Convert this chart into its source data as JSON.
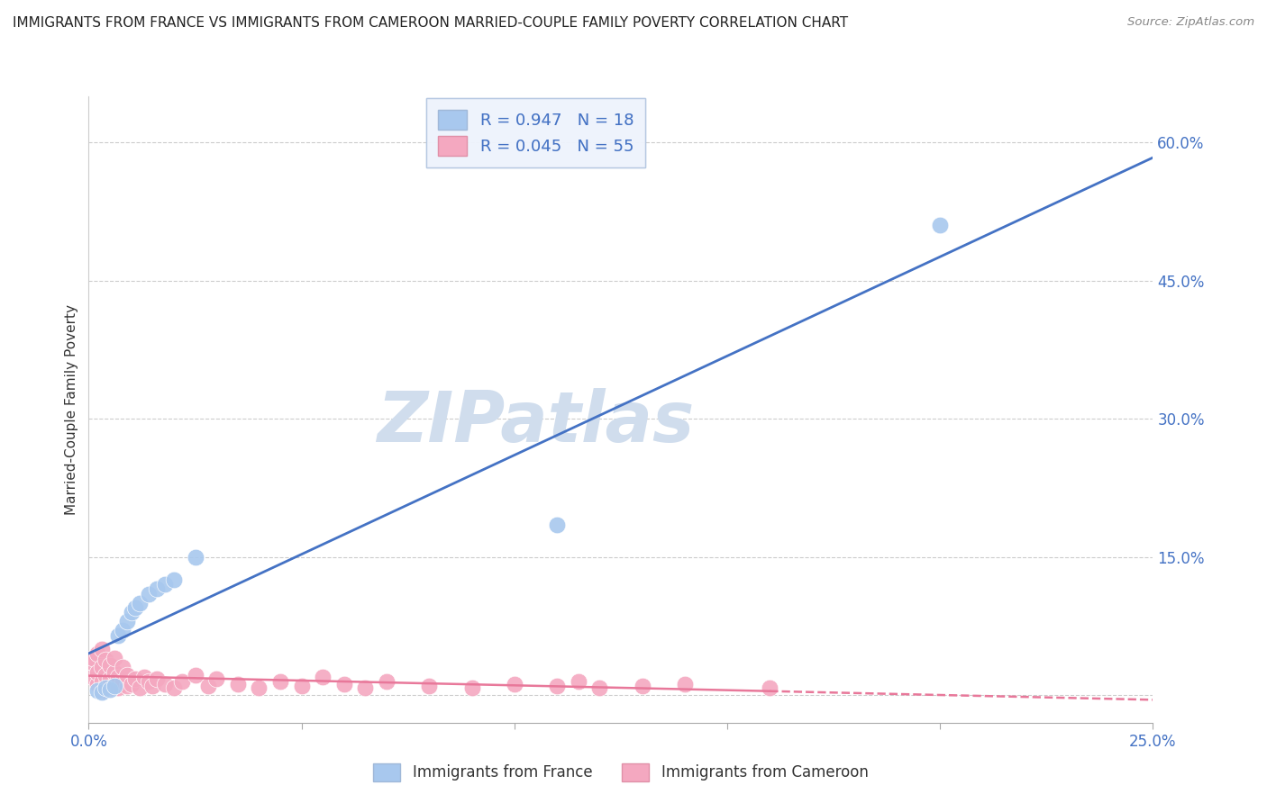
{
  "title": "IMMIGRANTS FROM FRANCE VS IMMIGRANTS FROM CAMEROON MARRIED-COUPLE FAMILY POVERTY CORRELATION CHART",
  "source": "Source: ZipAtlas.com",
  "ylabel": "Married-Couple Family Poverty",
  "xlim": [
    0.0,
    0.25
  ],
  "ylim": [
    -0.03,
    0.65
  ],
  "xticks": [
    0.0,
    0.05,
    0.1,
    0.15,
    0.2,
    0.25
  ],
  "yticks": [
    0.0,
    0.15,
    0.3,
    0.45,
    0.6
  ],
  "ytick_labels": [
    "",
    "15.0%",
    "30.0%",
    "45.0%",
    "60.0%"
  ],
  "xtick_labels": [
    "0.0%",
    "",
    "",
    "",
    "",
    "25.0%"
  ],
  "france_R": 0.947,
  "france_N": 18,
  "cameroon_R": 0.045,
  "cameroon_N": 55,
  "france_color": "#A8C8EE",
  "cameroon_color": "#F4A8C0",
  "france_line_color": "#4472C4",
  "cameroon_line_color": "#E8789A",
  "watermark": "ZIPatlas",
  "watermark_color": "#D0DDED",
  "france_x": [
    0.002,
    0.003,
    0.004,
    0.005,
    0.006,
    0.007,
    0.008,
    0.009,
    0.01,
    0.011,
    0.012,
    0.014,
    0.016,
    0.018,
    0.02,
    0.025,
    0.11,
    0.2
  ],
  "france_y": [
    0.005,
    0.003,
    0.008,
    0.006,
    0.01,
    0.065,
    0.07,
    0.08,
    0.09,
    0.095,
    0.1,
    0.11,
    0.115,
    0.12,
    0.125,
    0.15,
    0.185,
    0.51
  ],
  "cameroon_x": [
    0.001,
    0.001,
    0.001,
    0.002,
    0.002,
    0.002,
    0.003,
    0.003,
    0.003,
    0.003,
    0.004,
    0.004,
    0.004,
    0.005,
    0.005,
    0.005,
    0.006,
    0.006,
    0.006,
    0.007,
    0.007,
    0.008,
    0.008,
    0.009,
    0.009,
    0.01,
    0.011,
    0.012,
    0.013,
    0.014,
    0.015,
    0.016,
    0.018,
    0.02,
    0.022,
    0.025,
    0.028,
    0.03,
    0.035,
    0.04,
    0.045,
    0.05,
    0.055,
    0.06,
    0.065,
    0.07,
    0.08,
    0.09,
    0.1,
    0.11,
    0.115,
    0.12,
    0.13,
    0.14,
    0.16
  ],
  "cameroon_y": [
    0.02,
    0.035,
    0.04,
    0.012,
    0.025,
    0.045,
    0.005,
    0.015,
    0.03,
    0.05,
    0.01,
    0.022,
    0.038,
    0.008,
    0.018,
    0.032,
    0.012,
    0.025,
    0.04,
    0.008,
    0.02,
    0.015,
    0.03,
    0.01,
    0.022,
    0.012,
    0.018,
    0.008,
    0.02,
    0.015,
    0.01,
    0.018,
    0.012,
    0.008,
    0.015,
    0.022,
    0.01,
    0.018,
    0.012,
    0.008,
    0.015,
    0.01,
    0.02,
    0.012,
    0.008,
    0.015,
    0.01,
    0.008,
    0.012,
    0.01,
    0.015,
    0.008,
    0.01,
    0.012,
    0.008
  ],
  "legend_box_color": "#EEF3FC",
  "legend_border_color": "#B0C4E0",
  "legend_text_color": "#333333",
  "axis_tick_color": "#4472C4",
  "grid_color": "#CCCCCC"
}
